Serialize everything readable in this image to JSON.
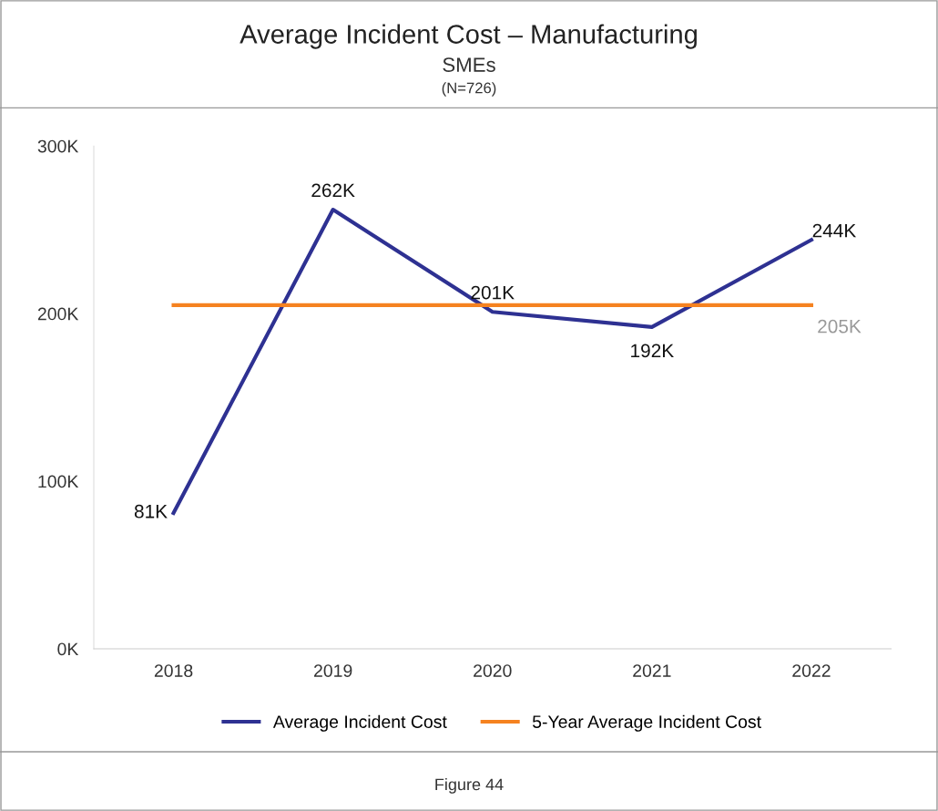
{
  "chart_data": {
    "type": "line",
    "title": "Average Incident Cost – Manufacturing",
    "subtitle": "SMEs",
    "annotations": [
      "(N=726)",
      "Figure 44"
    ],
    "categories": [
      "2018",
      "2019",
      "2020",
      "2021",
      "2022"
    ],
    "series": [
      {
        "name": "Average Incident Cost",
        "color": "#2e3192",
        "values": [
          81000,
          262000,
          201000,
          192000,
          244000
        ],
        "value_labels": [
          "81K",
          "262K",
          "201K",
          "192K",
          "244K"
        ]
      },
      {
        "name": "5-Year Average Incident Cost",
        "color": "#f58220",
        "values": [
          205000,
          205000,
          205000,
          205000,
          205000
        ],
        "value_labels": [
          null,
          null,
          null,
          null,
          "205K"
        ]
      }
    ],
    "ylim": [
      0,
      300000
    ],
    "yticks": [
      {
        "value": 0,
        "label": "0K"
      },
      {
        "value": 100000,
        "label": "100K"
      },
      {
        "value": 200000,
        "label": "200K"
      },
      {
        "value": 300000,
        "label": "300K"
      }
    ],
    "grid": false,
    "legend": "bottom",
    "marker": "none",
    "line_style": "solid"
  }
}
